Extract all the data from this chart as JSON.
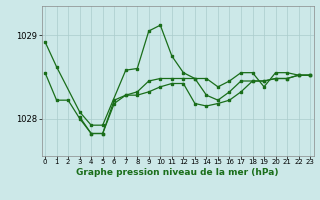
{
  "title": "Graphe pression niveau de la mer (hPa)",
  "bg_color": "#cce8e8",
  "plot_bg_color": "#cce8e8",
  "grid_color": "#aacccc",
  "line_color": "#1a6e1a",
  "x_ticks": [
    0,
    1,
    2,
    3,
    4,
    5,
    6,
    7,
    8,
    9,
    10,
    11,
    12,
    13,
    14,
    15,
    16,
    17,
    18,
    19,
    20,
    21,
    22,
    23
  ],
  "y_ticks": [
    1028,
    1029
  ],
  "ylim": [
    1027.55,
    1029.35
  ],
  "xlim": [
    -0.3,
    23.3
  ],
  "series1_x": [
    0,
    1,
    3,
    4,
    5,
    7,
    8,
    9,
    10,
    11,
    12,
    13,
    14,
    15,
    16,
    17,
    18,
    19,
    20,
    21,
    22,
    23
  ],
  "series1_y": [
    1028.92,
    1028.62,
    1028.08,
    1027.92,
    1027.92,
    1028.58,
    1028.6,
    1029.05,
    1029.12,
    1028.75,
    1028.55,
    1028.48,
    1028.48,
    1028.38,
    1028.45,
    1028.55,
    1028.55,
    1028.38,
    1028.55,
    1028.55,
    1028.52,
    1028.52
  ],
  "series2_x": [
    0,
    1,
    2,
    3,
    4,
    5,
    6,
    7,
    8,
    9,
    10,
    11,
    12,
    13,
    14,
    15,
    16,
    17,
    18,
    19,
    20,
    21,
    22,
    23
  ],
  "series2_y": [
    1028.55,
    1028.22,
    1028.22,
    1028.0,
    1027.82,
    1027.82,
    1028.18,
    1028.28,
    1028.32,
    1028.45,
    1028.48,
    1028.48,
    1028.48,
    1028.48,
    1028.28,
    1028.22,
    1028.32,
    1028.45,
    1028.45,
    1028.45,
    1028.48,
    1028.48,
    1028.52,
    1028.52
  ],
  "series3_x": [
    3,
    4,
    5,
    6,
    7,
    8,
    9,
    10,
    11,
    12,
    13,
    14,
    15,
    16,
    17,
    18,
    19,
    20,
    21,
    22,
    23
  ],
  "series3_y": [
    1028.02,
    1027.82,
    1027.82,
    1028.22,
    1028.28,
    1028.28,
    1028.32,
    1028.38,
    1028.42,
    1028.42,
    1028.18,
    1028.15,
    1028.18,
    1028.22,
    1028.32,
    1028.45,
    1028.45,
    1028.48,
    1028.48,
    1028.52,
    1028.52
  ]
}
